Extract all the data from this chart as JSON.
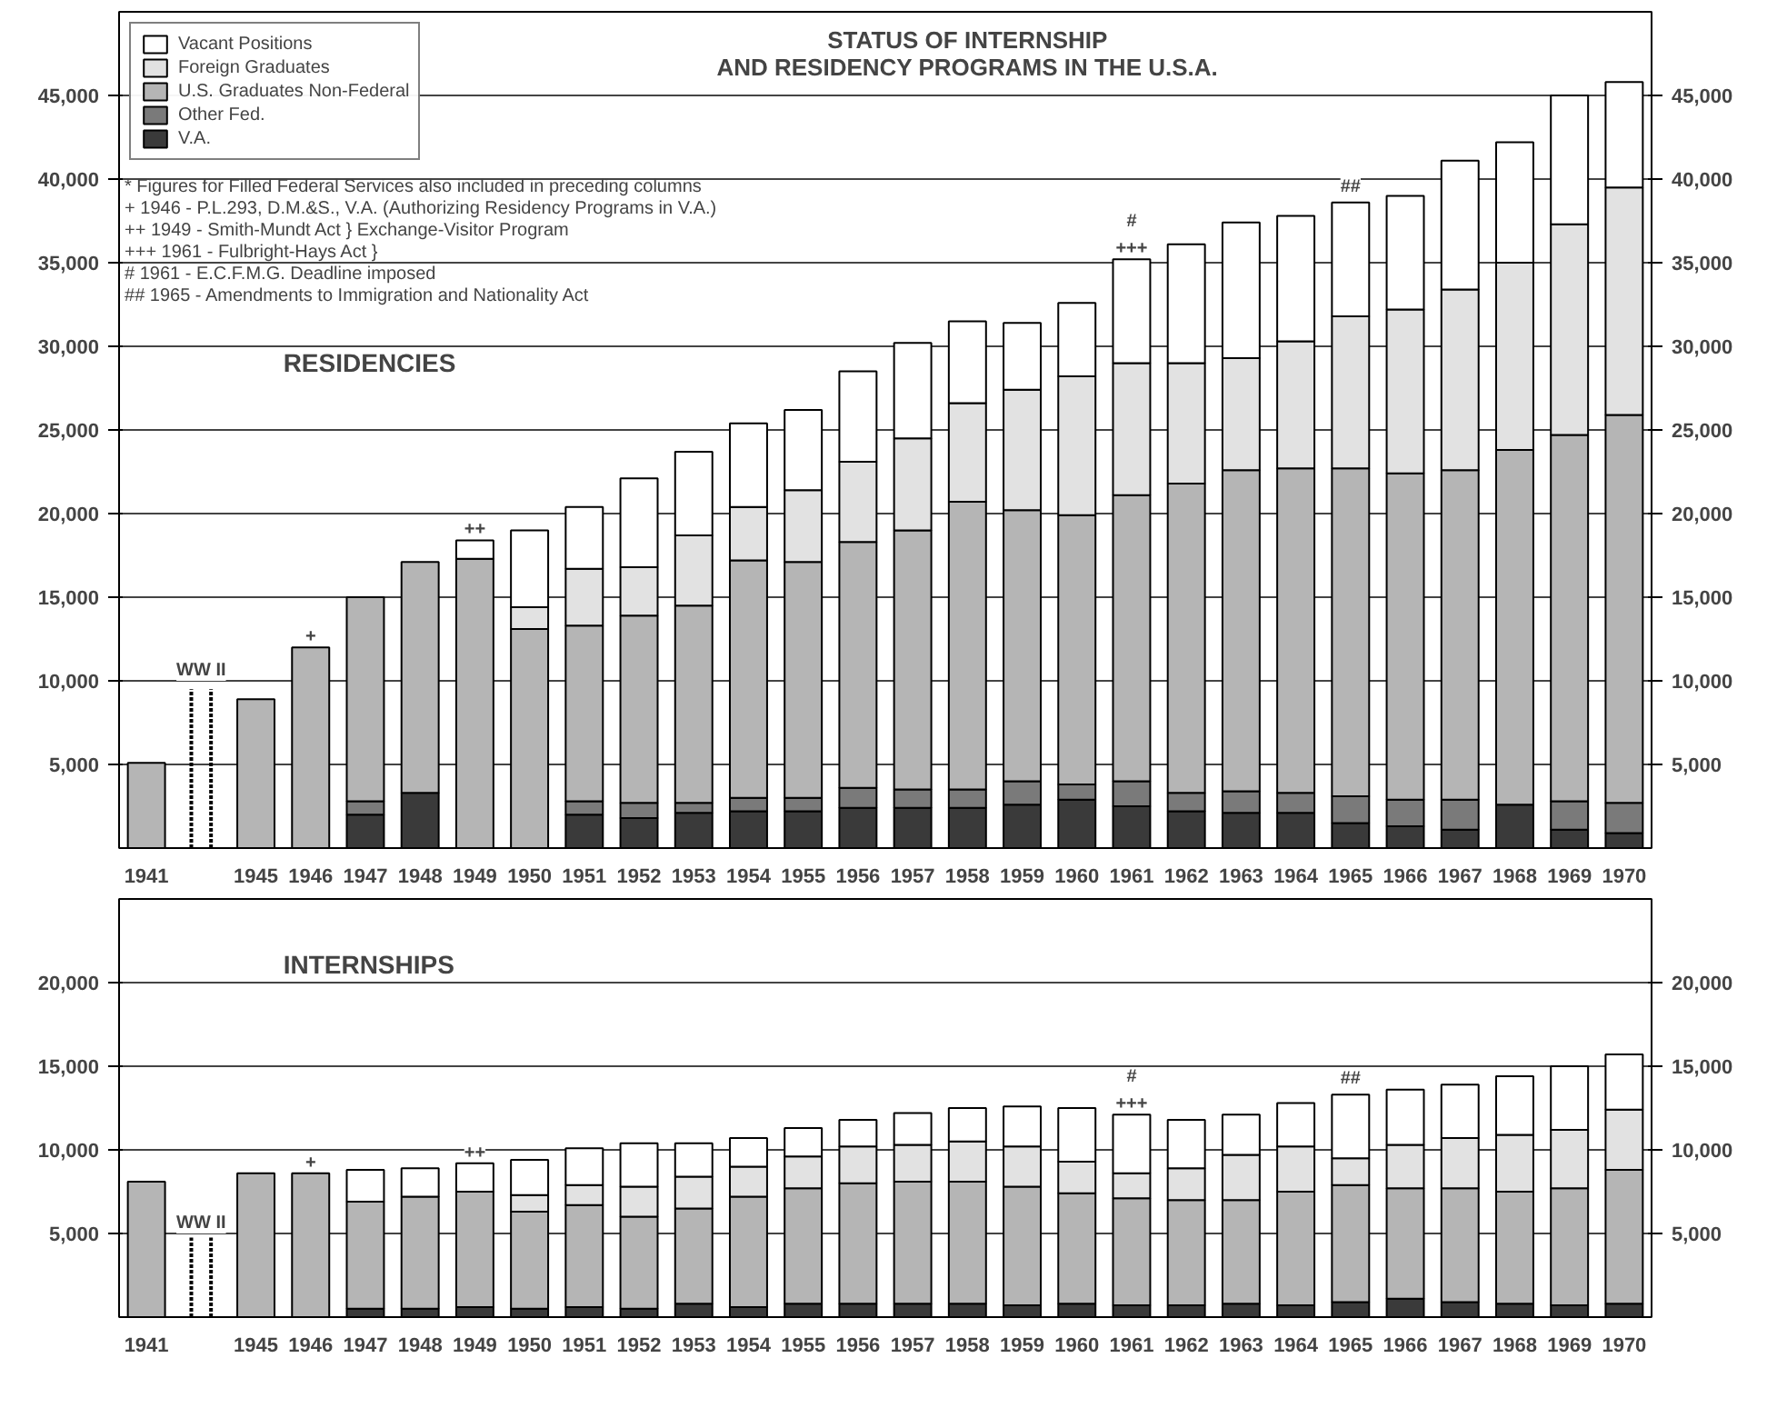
{
  "chart_data": [
    {
      "type": "bar",
      "stacked": true,
      "title": "STATUS OF INTERNSHIP\nAND RESIDENCY PROGRAMS IN THE U.S.A.",
      "subtitle": "RESIDENCIES",
      "categories": [
        "1941",
        null,
        "1945",
        "1946",
        "1947",
        "1948",
        "1949",
        "1950",
        "1951",
        "1952",
        "1953",
        "1954",
        "1955",
        "1956",
        "1957",
        "1958",
        "1959",
        "1960",
        "1961",
        "1962",
        "1963",
        "1964",
        "1965",
        "1966",
        "1967",
        "1968",
        "1969",
        "1970"
      ],
      "series": [
        {
          "name": "V.A.",
          "color": "#3a3a3a",
          "values": [
            null,
            null,
            null,
            null,
            2000,
            3300,
            null,
            null,
            2000,
            1800,
            2100,
            2200,
            2200,
            2400,
            2400,
            2400,
            2600,
            2900,
            2500,
            2200,
            2100,
            2100,
            1500,
            1300,
            1100,
            2600,
            1100,
            900
          ]
        },
        {
          "name": "Other Fed.",
          "color": "#7a7a7a",
          "values": [
            null,
            null,
            null,
            null,
            800,
            null,
            null,
            null,
            800,
            900,
            600,
            800,
            800,
            1200,
            1100,
            1100,
            1400,
            900,
            1500,
            1100,
            1300,
            1200,
            1600,
            1600,
            1800,
            null,
            1700,
            1800
          ]
        },
        {
          "name": "U.S. Graduates Non-Federal",
          "color": "#b5b5b5",
          "values": [
            5100,
            null,
            8900,
            12000,
            12200,
            13800,
            17300,
            13100,
            10500,
            11200,
            11800,
            14200,
            14100,
            14700,
            15500,
            17200,
            16200,
            16100,
            17100,
            18500,
            19200,
            19400,
            19600,
            19500,
            19700,
            21200,
            21900,
            23200
          ]
        },
        {
          "name": "Foreign Graduates",
          "color": "#e2e2e2",
          "values": [
            null,
            null,
            null,
            null,
            null,
            null,
            null,
            1300,
            3400,
            2900,
            4200,
            3200,
            4300,
            4800,
            5500,
            5900,
            7200,
            8300,
            7900,
            7200,
            6700,
            7600,
            9100,
            9800,
            10800,
            11200,
            12600,
            13600
          ]
        },
        {
          "name": "Vacant Positions",
          "color": "#ffffff",
          "values": [
            null,
            null,
            null,
            null,
            null,
            null,
            1100,
            4600,
            3700,
            5300,
            5000,
            5000,
            4800,
            5400,
            5700,
            4900,
            4000,
            4400,
            6200,
            7100,
            8100,
            7500,
            6800,
            6800,
            7700,
            7200,
            7700,
            6300
          ]
        }
      ],
      "ylim": [
        0,
        50000
      ],
      "yticks": [
        {
          "value": 5000,
          "label": "5,000"
        },
        {
          "value": 10000,
          "label": "10,000"
        },
        {
          "value": 15000,
          "label": "15,000"
        },
        {
          "value": 20000,
          "label": "20,000"
        },
        {
          "value": 25000,
          "label": "25,000"
        },
        {
          "value": 30000,
          "label": "30,000"
        },
        {
          "value": 35000,
          "label": "35,000"
        },
        {
          "value": 40000,
          "label": "40,000"
        },
        {
          "value": 45000,
          "label": "45,000"
        }
      ],
      "y2lim": [
        0,
        50000
      ],
      "y2ticks": [
        {
          "value": 5000,
          "label": "5,000"
        },
        {
          "value": 10000,
          "label": "10,000"
        },
        {
          "value": 15000,
          "label": "15,000"
        },
        {
          "value": 20000,
          "label": "20,000"
        },
        {
          "value": 25000,
          "label": "25,000"
        },
        {
          "value": 30000,
          "label": "30,000"
        },
        {
          "value": 35000,
          "label": "35,000"
        },
        {
          "value": 40000,
          "label": "40,000"
        },
        {
          "value": 45000,
          "label": "45,000"
        }
      ],
      "grid": "y",
      "legend": "top left",
      "annotations": [
        "* Figures for Filled Federal Services also included in preceding columns",
        "+ 1946 - P.L.293, D.M.&S., V.A. (Authorizing Residency Programs in V.A.)",
        "++ 1949 - Smith-Mundt Act } Exchange-Visitor Program",
        "+++ 1961 - Fulbright-Hays Act }",
        "# 1961 - E.C.F.M.G. Deadline imposed",
        "## 1965 - Amendments to Immigration and Nationality Act",
        "WW II",
        {
          "text": "+",
          "x": "1946",
          "y": 12000
        },
        {
          "text": "++",
          "x": "1949",
          "y": 18400
        },
        {
          "text": "+++",
          "x": "1961",
          "y": 35200
        },
        {
          "text": "#",
          "x": "1961",
          "y": 35200
        },
        {
          "text": "##",
          "x": "1965",
          "y": 38600
        }
      ]
    },
    {
      "type": "bar",
      "stacked": true,
      "subtitle": "INTERNSHIPS",
      "categories": [
        "1941",
        null,
        "1945",
        "1946",
        "1947",
        "1948",
        "1949",
        "1950",
        "1951",
        "1952",
        "1953",
        "1954",
        "1955",
        "1956",
        "1957",
        "1958",
        "1959",
        "1960",
        "1961",
        "1962",
        "1963",
        "1964",
        "1965",
        "1966",
        "1967",
        "1968",
        "1969",
        "1970"
      ],
      "series": [
        {
          "color": "#3a3a3a",
          "values": [
            null,
            null,
            null,
            null,
            500,
            500,
            600,
            500,
            600,
            500,
            800,
            600,
            800,
            800,
            800,
            800,
            700,
            800,
            700,
            700,
            800,
            700,
            900,
            1100,
            900,
            800,
            700,
            800
          ]
        },
        {
          "color": "#b5b5b5",
          "values": [
            8100,
            null,
            8600,
            8600,
            6400,
            6700,
            6900,
            5800,
            6100,
            5500,
            5700,
            6600,
            6900,
            7200,
            7300,
            7300,
            7100,
            6600,
            6400,
            6300,
            6200,
            6800,
            7000,
            6600,
            6800,
            6700,
            7000,
            8000
          ]
        },
        {
          "color": "#e2e2e2",
          "values": [
            null,
            null,
            null,
            null,
            null,
            null,
            null,
            1000,
            1200,
            1800,
            1900,
            1800,
            1900,
            2200,
            2200,
            2400,
            2400,
            1900,
            1500,
            1900,
            2700,
            2700,
            1600,
            2600,
            3000,
            3400,
            3500,
            3600
          ]
        },
        {
          "color": "#ffffff",
          "values": [
            null,
            null,
            null,
            null,
            1900,
            1700,
            1700,
            2100,
            2200,
            2600,
            2000,
            1700,
            1700,
            1600,
            1900,
            2000,
            2400,
            3200,
            3500,
            2900,
            2400,
            2600,
            3800,
            3300,
            3200,
            3500,
            3800,
            3300
          ]
        }
      ],
      "ylim": [
        0,
        25000
      ],
      "yticks": [
        {
          "value": 5000,
          "label": "5,000"
        },
        {
          "value": 10000,
          "label": "10,000"
        },
        {
          "value": 15000,
          "label": "15,000"
        },
        {
          "value": 20000,
          "label": "20,000"
        }
      ],
      "y2lim": [
        0,
        25000
      ],
      "y2ticks": [
        {
          "value": 5000,
          "label": "5,000"
        },
        {
          "value": 10000,
          "label": "10,000"
        },
        {
          "value": 15000,
          "label": "15,000"
        },
        {
          "value": 20000,
          "label": "20,000"
        }
      ],
      "grid": "y",
      "annotations": [
        "WW II",
        {
          "text": "+",
          "x": "1946",
          "y": 8600
        },
        {
          "text": "++",
          "x": "1949",
          "y": 9200
        },
        {
          "text": "+++",
          "x": "1961",
          "y": 12100
        },
        {
          "text": "#",
          "x": "1961",
          "y": 12100
        },
        {
          "text": "##",
          "x": "1965",
          "y": 13300
        }
      ]
    }
  ]
}
